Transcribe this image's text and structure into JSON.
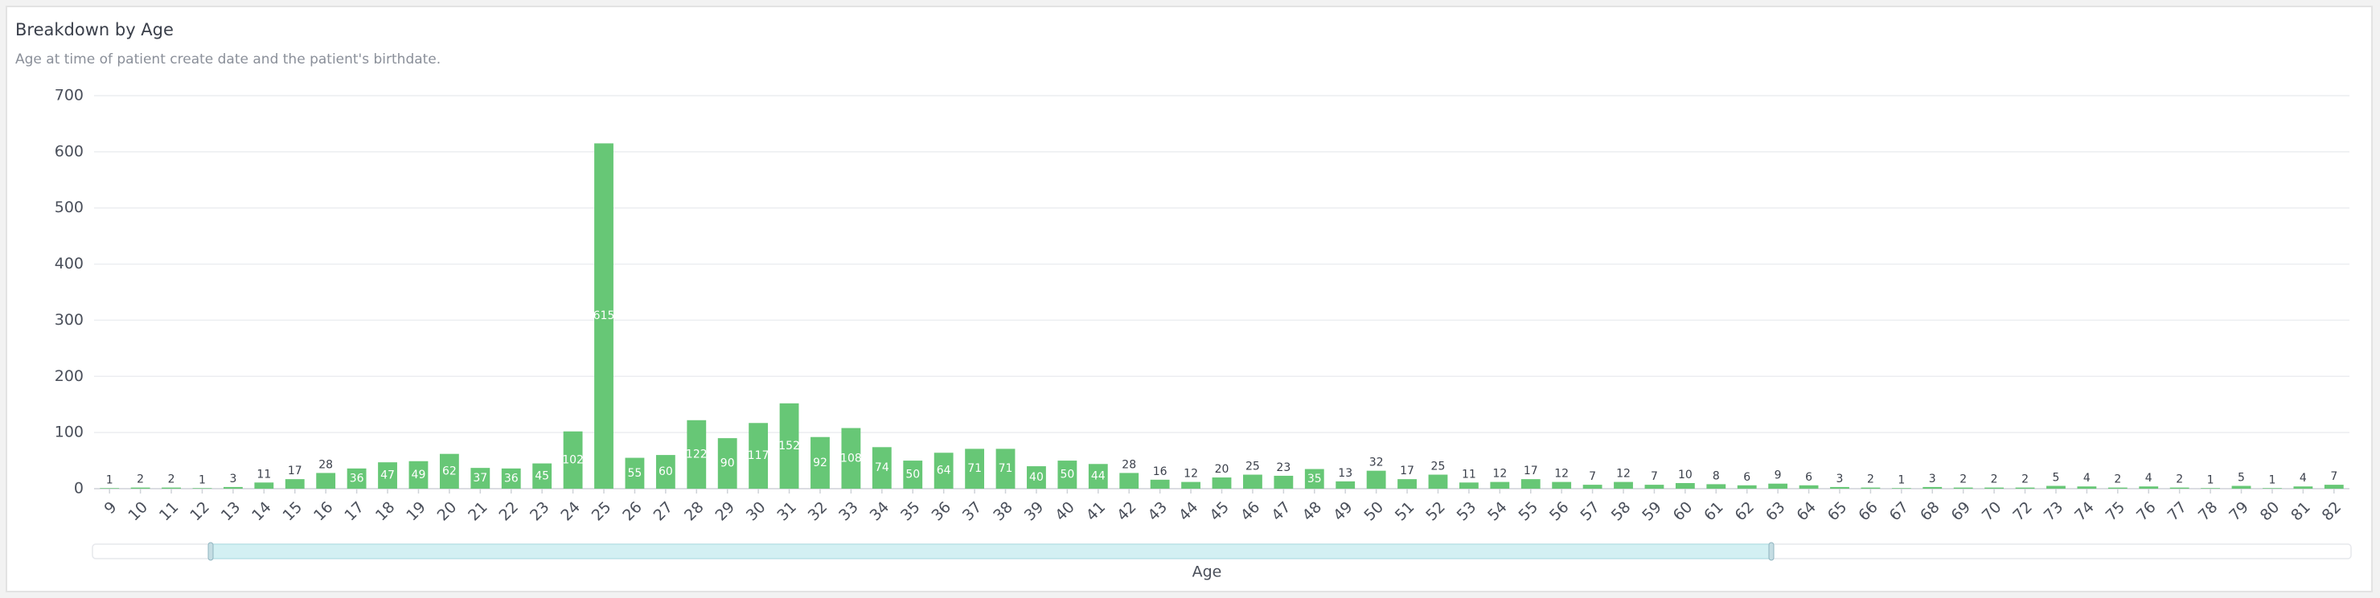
{
  "chart_data": {
    "type": "bar",
    "title": "Breakdown by Age",
    "subtitle": "Age at time of patient create date and the patient's birthdate.",
    "x_label": "Age",
    "color": "#67c776",
    "grid": true,
    "categories": [
      "9",
      "10",
      "11",
      "12",
      "13",
      "14",
      "15",
      "16",
      "17",
      "18",
      "19",
      "20",
      "21",
      "22",
      "23",
      "24",
      "25",
      "26",
      "27",
      "28",
      "29",
      "30",
      "31",
      "32",
      "33",
      "34",
      "35",
      "36",
      "37",
      "38",
      "39",
      "40",
      "41",
      "42",
      "43",
      "44",
      "45",
      "46",
      "47",
      "48",
      "49",
      "50",
      "51",
      "52",
      "53",
      "54",
      "55",
      "56",
      "57",
      "58",
      "59",
      "60",
      "61",
      "62",
      "63",
      "64",
      "65",
      "66",
      "67",
      "68",
      "69",
      "70",
      "72",
      "73",
      "74",
      "75",
      "76",
      "77",
      "78",
      "79",
      "80",
      "81",
      "82"
    ],
    "values": [
      1,
      2,
      2,
      1,
      3,
      11,
      17,
      28,
      36,
      47,
      49,
      62,
      37,
      36,
      45,
      102,
      615,
      55,
      60,
      122,
      90,
      117,
      152,
      92,
      108,
      74,
      50,
      64,
      71,
      71,
      40,
      50,
      44,
      28,
      16,
      12,
      20,
      25,
      23,
      35,
      13,
      32,
      17,
      25,
      11,
      12,
      17,
      12,
      7,
      12,
      7,
      10,
      8,
      6,
      9,
      6,
      3,
      2,
      1,
      3,
      2,
      2,
      2,
      5,
      4,
      2,
      4,
      2,
      1,
      5,
      1,
      4,
      7
    ],
    "ylim": [
      0,
      700
    ],
    "yticks": [
      0,
      100,
      200,
      300,
      400,
      500,
      600,
      700
    ]
  }
}
